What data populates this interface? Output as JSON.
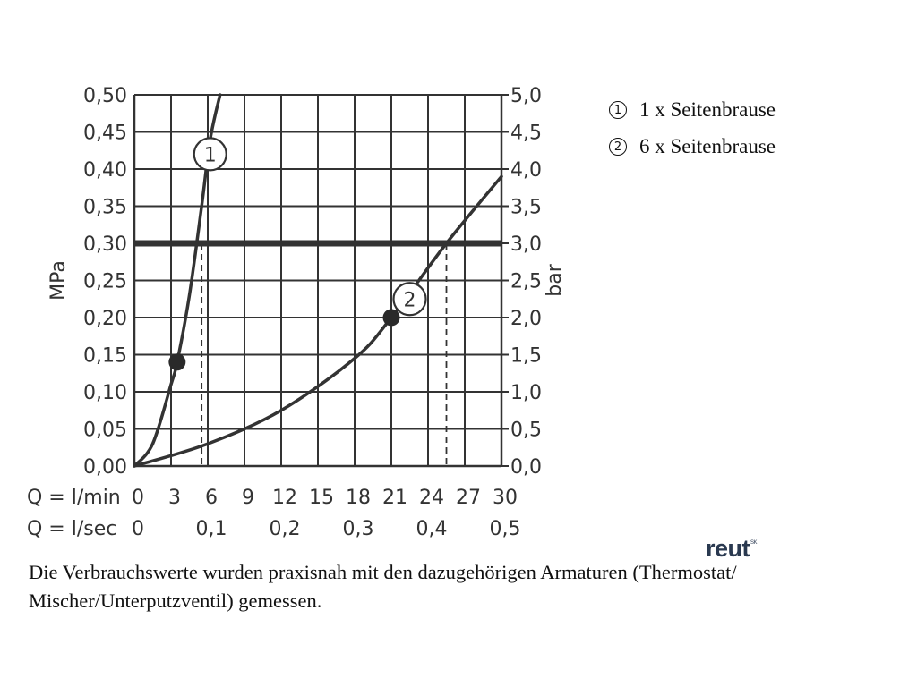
{
  "chart_data": {
    "type": "line",
    "y_left": {
      "label": "MPa",
      "ticks": [
        "0,00",
        "0,05",
        "0,10",
        "0,15",
        "0,20",
        "0,25",
        "0,30",
        "0,35",
        "0,40",
        "0,45",
        "0,50"
      ],
      "range": [
        0,
        0.5
      ]
    },
    "y_right": {
      "label": "bar",
      "ticks": [
        "0,0",
        "0,5",
        "1,0",
        "1,5",
        "2,0",
        "2,5",
        "3,0",
        "3,5",
        "4,0",
        "4,5",
        "5,0"
      ],
      "range": [
        0,
        5
      ]
    },
    "x_primary": {
      "label": "Q = l/min",
      "ticks": [
        "0",
        "3",
        "6",
        "9",
        "12",
        "15",
        "18",
        "21",
        "24",
        "27",
        "30"
      ],
      "range": [
        0,
        30
      ]
    },
    "x_secondary": {
      "label": "Q = l/sec",
      "ticks": [
        "0",
        "0,1",
        "0,2",
        "0,3",
        "0,4",
        "0,5"
      ],
      "values": [
        0,
        6,
        12,
        18,
        24,
        30
      ]
    },
    "grid": true,
    "reference_line": {
      "y": 0.3
    },
    "series": [
      {
        "id": "1",
        "x": [
          0,
          1.5,
          3,
          3.5,
          4.5,
          5.5,
          6.2,
          7
        ],
        "y": [
          0,
          0.03,
          0.11,
          0.14,
          0.23,
          0.35,
          0.44,
          0.5
        ],
        "marker": {
          "x": 3.5,
          "y": 0.14
        },
        "label_point": {
          "x": 6.2,
          "y": 0.42
        },
        "crossing_x": 5.5
      },
      {
        "id": "2",
        "x": [
          0,
          6,
          12,
          18,
          21,
          25.5,
          30
        ],
        "y": [
          0,
          0.03,
          0.075,
          0.145,
          0.2,
          0.3,
          0.39
        ],
        "marker": {
          "x": 21,
          "y": 0.2
        },
        "label_point": {
          "x": 22.5,
          "y": 0.225
        },
        "crossing_x": 25.5
      }
    ]
  },
  "legend": [
    {
      "num": "1",
      "text": "1 x Seitenbrause"
    },
    {
      "num": "2",
      "text": "6 x Seitenbrause"
    }
  ],
  "caption": "Die Verbrauchswerte wurden praxisnah mit den dazugehörigen Armaturen (Thermostat/ Mischer/Unterputzventil) gemessen.",
  "brand": {
    "text": "reut",
    "superscript": "SK"
  }
}
